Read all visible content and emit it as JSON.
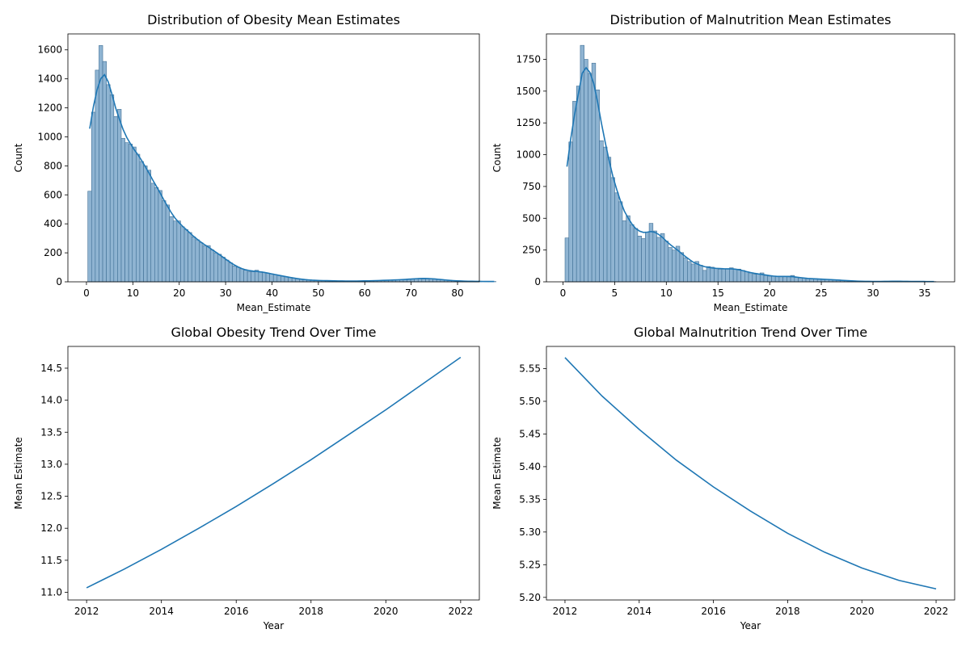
{
  "colors": {
    "bar_fill": "#8fb4d2",
    "bar_edge": "#3f6f95",
    "line": "#1f77b4",
    "axis": "#000000"
  },
  "chart_data": [
    {
      "type": "histogram",
      "title": "Distribution of Obesity Mean Estimates",
      "xlabel": "Mean_Estimate",
      "ylabel": "Count",
      "xlim": [
        -4.0,
        84.7
      ],
      "ylim": [
        0,
        1710
      ],
      "xticks": [
        0,
        10,
        20,
        30,
        40,
        50,
        60,
        70,
        80
      ],
      "yticks": [
        0,
        200,
        400,
        600,
        800,
        1000,
        1200,
        1400,
        1600
      ],
      "bin_start": 0.3,
      "bin_width": 0.8,
      "counts": [
        625,
        1170,
        1460,
        1630,
        1520,
        1360,
        1290,
        1140,
        1190,
        990,
        960,
        950,
        930,
        880,
        830,
        800,
        770,
        680,
        650,
        630,
        560,
        530,
        450,
        420,
        420,
        380,
        360,
        340,
        310,
        290,
        270,
        250,
        250,
        220,
        200,
        190,
        170,
        150,
        130,
        110,
        100,
        90,
        80,
        70,
        70,
        80,
        70,
        65,
        60,
        55,
        50,
        45,
        40,
        35,
        30,
        25,
        22,
        18,
        15,
        12,
        10,
        10,
        9,
        8,
        8,
        7,
        7,
        6,
        6,
        5,
        5,
        5,
        5,
        6,
        6,
        7,
        8,
        8,
        9,
        10,
        10,
        12,
        13,
        14,
        15,
        16,
        18,
        20,
        22,
        24,
        25,
        24,
        22,
        20,
        18,
        15,
        12,
        10,
        8,
        6,
        5,
        5,
        4,
        4,
        3,
        3,
        3,
        2,
        3,
        2
      ]
    },
    {
      "type": "histogram",
      "title": "Distribution of Malnutrition Mean Estimates",
      "xlabel": "Mean_Estimate",
      "ylabel": "Count",
      "xlim": [
        -1.6,
        37.9
      ],
      "ylim": [
        0,
        1950
      ],
      "xticks": [
        0,
        5,
        10,
        15,
        20,
        25,
        30,
        35
      ],
      "yticks": [
        0,
        250,
        500,
        750,
        1000,
        1250,
        1500,
        1750
      ],
      "bin_start": 0.2,
      "bin_width": 0.37,
      "counts": [
        345,
        1100,
        1420,
        1540,
        1860,
        1750,
        1640,
        1720,
        1510,
        1110,
        1060,
        980,
        820,
        700,
        630,
        480,
        520,
        450,
        420,
        360,
        340,
        390,
        460,
        400,
        350,
        380,
        320,
        270,
        250,
        280,
        230,
        190,
        160,
        140,
        160,
        130,
        90,
        120,
        115,
        105,
        100,
        100,
        100,
        110,
        100,
        100,
        90,
        80,
        70,
        60,
        60,
        70,
        50,
        45,
        45,
        40,
        40,
        40,
        45,
        50,
        35,
        30,
        30,
        25,
        25,
        25,
        20,
        20,
        20,
        18,
        15,
        15,
        10,
        10,
        8,
        6,
        5,
        4,
        4,
        3,
        3,
        3,
        3,
        3,
        4,
        5,
        5,
        5,
        4,
        3,
        3,
        3,
        3,
        3,
        2,
        2,
        2
      ]
    },
    {
      "type": "line",
      "title": "Global Obesity Trend Over Time",
      "xlabel": "Year",
      "ylabel": "Mean Estimate",
      "xlim": [
        2011.5,
        2022.5
      ],
      "ylim": [
        10.88,
        14.84
      ],
      "xticks": [
        2012,
        2014,
        2016,
        2018,
        2020,
        2022
      ],
      "yticks": [
        11.0,
        11.5,
        12.0,
        12.5,
        13.0,
        13.5,
        14.0,
        14.5
      ],
      "ytick_decimals": 1,
      "x": [
        2012,
        2013,
        2014,
        2015,
        2016,
        2017,
        2018,
        2019,
        2020,
        2021,
        2022
      ],
      "y": [
        11.07,
        11.36,
        11.67,
        12.0,
        12.34,
        12.7,
        13.07,
        13.46,
        13.85,
        14.26,
        14.67
      ]
    },
    {
      "type": "line",
      "title": "Global Malnutrition Trend Over Time",
      "xlabel": "Year",
      "ylabel": "Mean Estimate",
      "xlim": [
        2011.5,
        2022.5
      ],
      "ylim": [
        5.196,
        5.584
      ],
      "xticks": [
        2012,
        2014,
        2016,
        2018,
        2020,
        2022
      ],
      "yticks": [
        5.2,
        5.25,
        5.3,
        5.35,
        5.4,
        5.45,
        5.5,
        5.55
      ],
      "ytick_decimals": 2,
      "x": [
        2012,
        2013,
        2014,
        2015,
        2016,
        2017,
        2018,
        2019,
        2020,
        2021,
        2022
      ],
      "y": [
        5.567,
        5.508,
        5.457,
        5.41,
        5.369,
        5.332,
        5.298,
        5.269,
        5.245,
        5.226,
        5.213
      ]
    }
  ]
}
